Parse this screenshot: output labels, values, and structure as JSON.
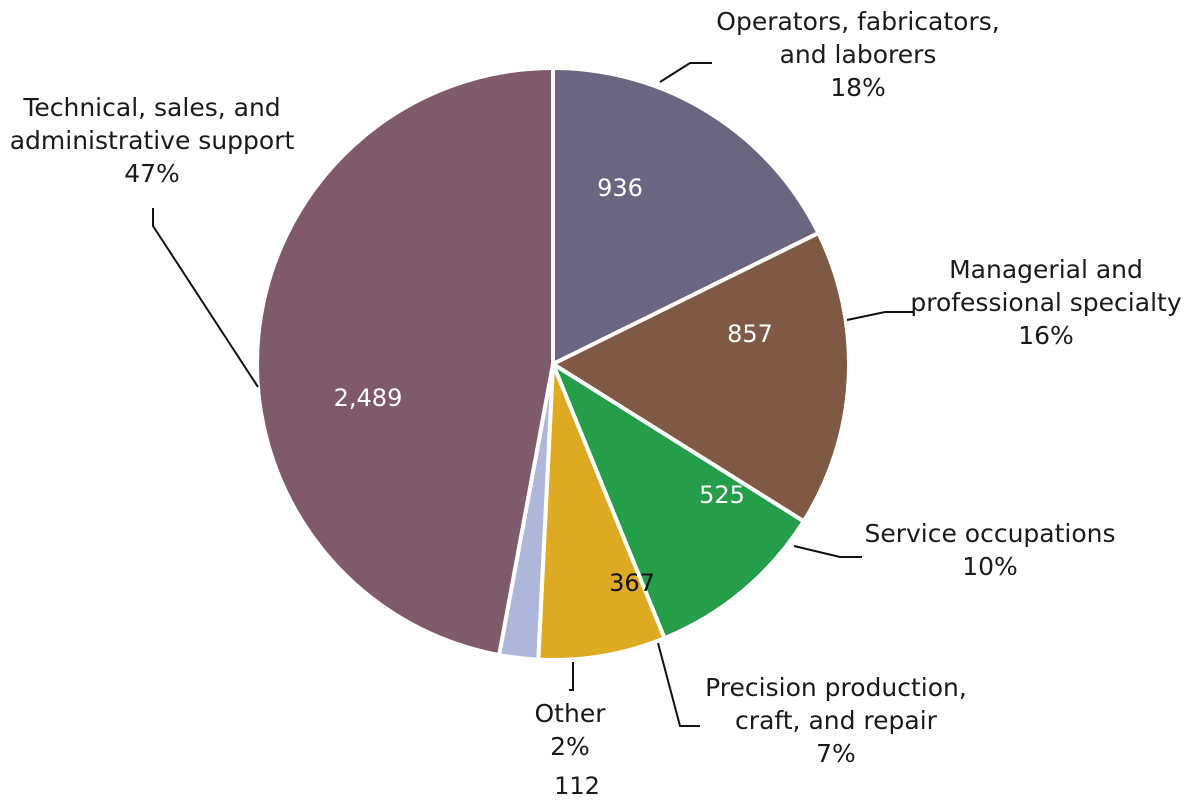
{
  "chart_data": {
    "type": "pie",
    "slices": [
      {
        "key": "operators",
        "label": [
          "Operators, fabricators,",
          "and laborers"
        ],
        "percent": "18%",
        "value": 936,
        "value_text": "936",
        "color": "#6c6581",
        "value_color": "#ffffff"
      },
      {
        "key": "managerial",
        "label": [
          "Managerial and",
          "professional specialty"
        ],
        "percent": "16%",
        "value": 857,
        "value_text": "857",
        "color": "#7f5944",
        "value_color": "#ffffff"
      },
      {
        "key": "service",
        "label": [
          "Service occupations"
        ],
        "percent": "10%",
        "value": 525,
        "value_text": "525",
        "color": "#259e4a",
        "value_color": "#ffffff"
      },
      {
        "key": "precision",
        "label": [
          "Precision production,",
          "craft, and repair"
        ],
        "percent": "7%",
        "value": 367,
        "value_text": "367",
        "color": "#ddaa22",
        "value_color": "#111111"
      },
      {
        "key": "other",
        "label": [
          "Other"
        ],
        "percent": "2%",
        "value": 112,
        "value_text": "112",
        "color": "#aeb6da",
        "value_color": "#111111"
      },
      {
        "key": "technical",
        "label": [
          "Technical,  sales, and",
          "administrative support"
        ],
        "percent": "47%",
        "value": 2489,
        "value_text": "2,489",
        "color": "#7f5a6b",
        "value_color": "#ffffff"
      }
    ]
  }
}
